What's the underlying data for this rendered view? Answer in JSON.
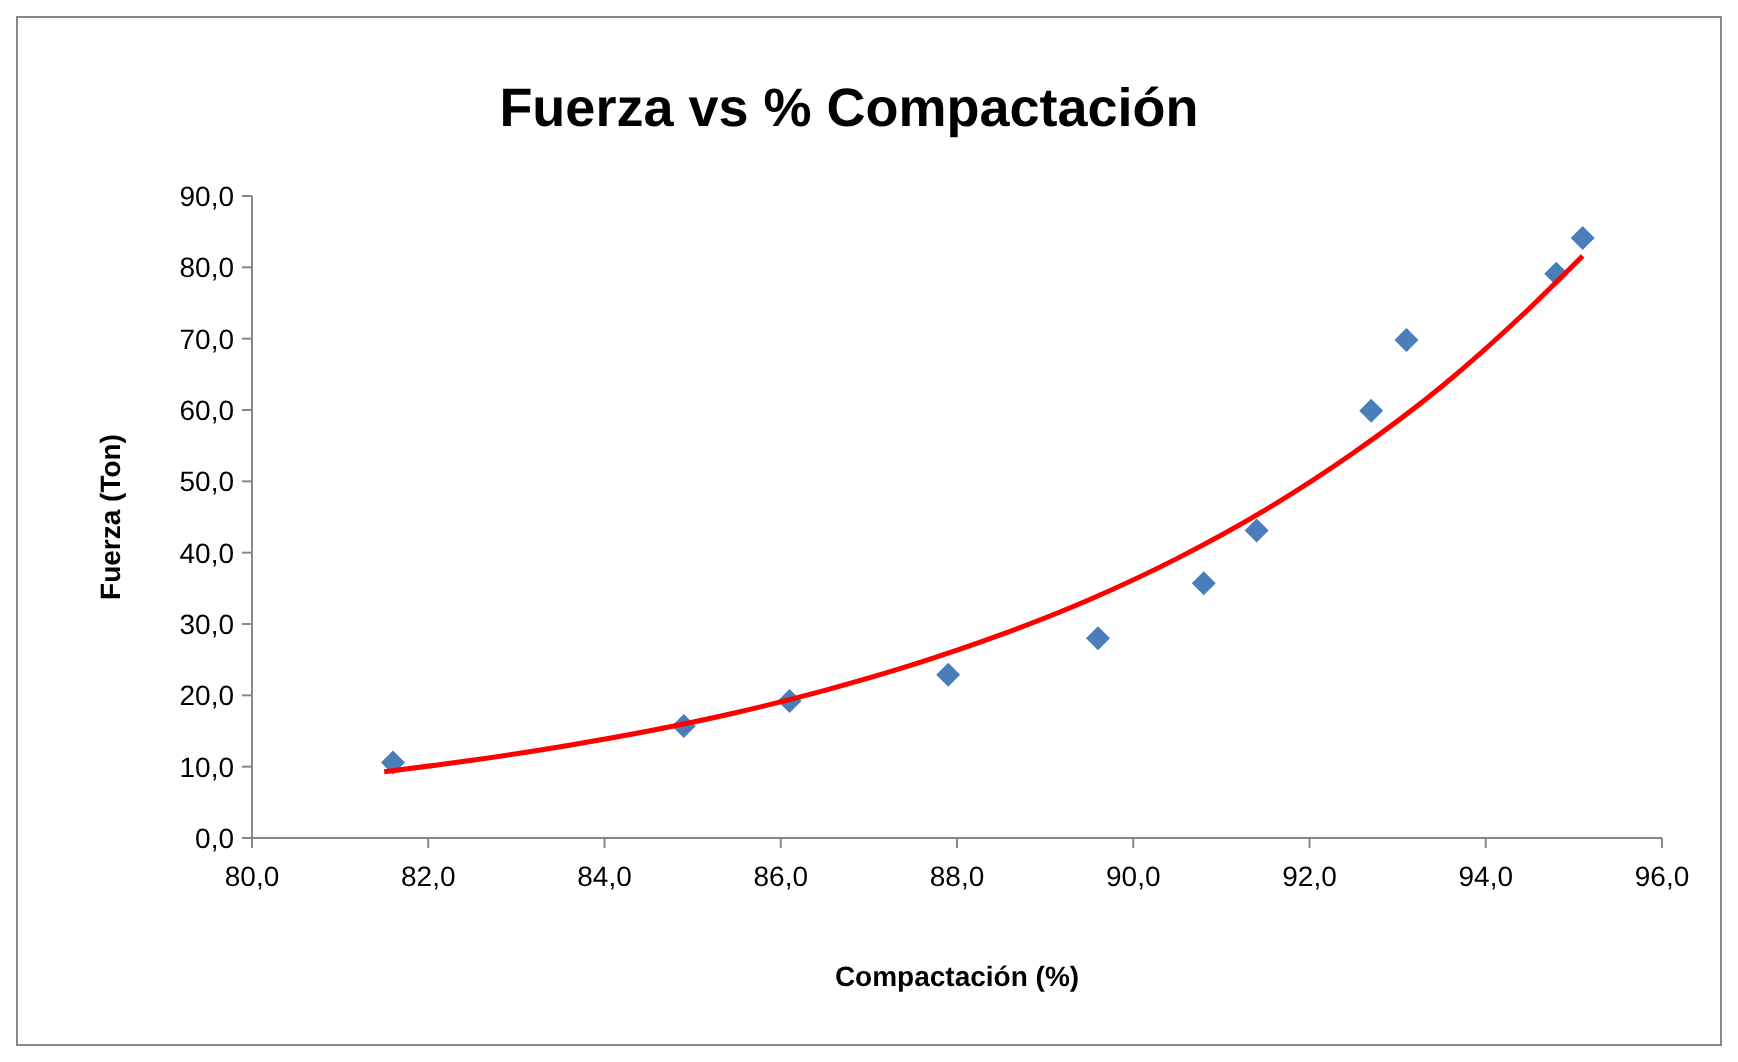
{
  "chart_data": {
    "type": "scatter",
    "title": "Fuerza vs % Compactación",
    "xlabel": "Compactación (%)",
    "ylabel": "Fuerza (Ton)",
    "xlim": [
      80,
      96
    ],
    "ylim": [
      0,
      90
    ],
    "xticks": [
      {
        "value": 80,
        "label": "80,0"
      },
      {
        "value": 82,
        "label": "82,0"
      },
      {
        "value": 84,
        "label": "84,0"
      },
      {
        "value": 86,
        "label": "86,0"
      },
      {
        "value": 88,
        "label": "88,0"
      },
      {
        "value": 90,
        "label": "90,0"
      },
      {
        "value": 92,
        "label": "92,0"
      },
      {
        "value": 94,
        "label": "94,0"
      },
      {
        "value": 96,
        "label": "96,0"
      }
    ],
    "yticks": [
      {
        "value": 0,
        "label": "0,0"
      },
      {
        "value": 10,
        "label": "10,0"
      },
      {
        "value": 20,
        "label": "20,0"
      },
      {
        "value": 30,
        "label": "30,0"
      },
      {
        "value": 40,
        "label": "40,0"
      },
      {
        "value": 50,
        "label": "50,0"
      },
      {
        "value": 60,
        "label": "60,0"
      },
      {
        "value": 70,
        "label": "70,0"
      },
      {
        "value": 80,
        "label": "80,0"
      },
      {
        "value": 90,
        "label": "90,0"
      }
    ],
    "grid": false,
    "series": [
      {
        "marker": "diamond",
        "color": "#4a7ebb",
        "x": [
          81.6,
          84.9,
          86.1,
          87.9,
          89.6,
          90.8,
          91.4,
          92.7,
          93.1,
          94.8,
          95.1
        ],
        "values": [
          10.6,
          15.7,
          19.2,
          22.9,
          28.0,
          35.7,
          43.1,
          59.9,
          69.8,
          79.1,
          84.1
        ]
      },
      {
        "type": "line",
        "marker": "none",
        "line_style": "solid",
        "color": "#ff0000",
        "x": [
          81.5,
          82.5,
          83.5,
          84.5,
          85.5,
          86.5,
          87.5,
          88.5,
          89.5,
          90.5,
          91.5,
          92.5,
          93.5,
          94.5,
          95.1
        ],
        "values": [
          9.3,
          10.9,
          12.8,
          15.0,
          17.6,
          20.7,
          24.3,
          28.5,
          33.4,
          39.2,
          46.0,
          54.0,
          63.3,
          74.3,
          81.6
        ]
      }
    ]
  }
}
